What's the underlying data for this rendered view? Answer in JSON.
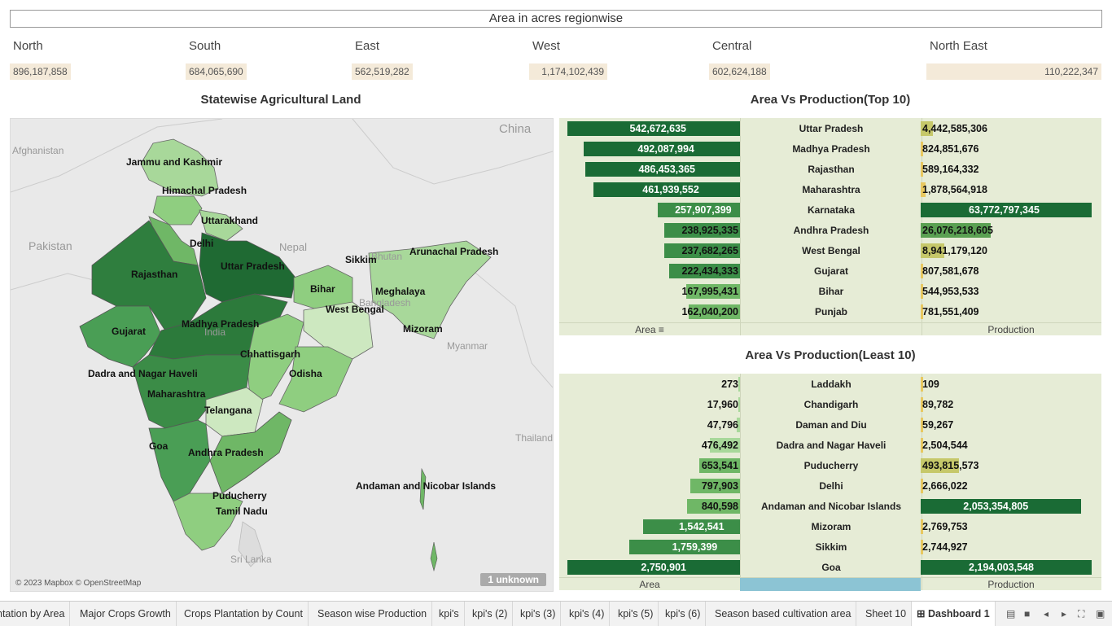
{
  "header": {
    "title": "Area in acres regionwise"
  },
  "regions": [
    {
      "name": "North",
      "value": "896,187,858"
    },
    {
      "name": "South",
      "value": "684,065,690"
    },
    {
      "name": "East",
      "value": "562,519,282"
    },
    {
      "name": "West",
      "value": "1,174,102,439"
    },
    {
      "name": "Central",
      "value": "602,624,188"
    },
    {
      "name": "North East",
      "value": "110,222,347"
    }
  ],
  "map": {
    "title": "Statewise Agricultural Land",
    "attribution": "© 2023 Mapbox © OpenStreetMap",
    "unknown_badge": "1 unknown",
    "countries": [
      "China",
      "Afghanistan",
      "Pakistan",
      "Nepal",
      "Bhutan",
      "Bangladesh",
      "Myanmar",
      "Thailand",
      "Sri Lanka",
      "India"
    ],
    "states": [
      "Jammu and Kashmir",
      "Himachal Pradesh",
      "Uttarakhand",
      "Delhi",
      "Rajasthan",
      "Uttar Pradesh",
      "Sikkim",
      "Arunachal Pradesh",
      "Bihar",
      "Meghalaya",
      "West Bengal",
      "Mizoram",
      "Gujarat",
      "Madhya Pradesh",
      "Chhattisgarh",
      "Odisha",
      "Dadra and Nagar Haveli",
      "Maharashtra",
      "Telangana",
      "Goa",
      "Andhra Pradesh",
      "Puducherry",
      "Tamil Nadu",
      "Andaman and Nicobar Islands"
    ]
  },
  "top10": {
    "title": "Area Vs Production(Top 10)",
    "area_label": "Area",
    "production_label": "Production",
    "rows": [
      {
        "state": "Uttar Pradesh",
        "area": "542,672,635",
        "area_v": 542672635,
        "prod": "4,442,585,306",
        "prod_v": 4442585306
      },
      {
        "state": "Madhya Pradesh",
        "area": "492,087,994",
        "area_v": 492087994,
        "prod": "824,851,676",
        "prod_v": 824851676
      },
      {
        "state": "Rajasthan",
        "area": "486,453,365",
        "area_v": 486453365,
        "prod": "589,164,332",
        "prod_v": 589164332
      },
      {
        "state": "Maharashtra",
        "area": "461,939,552",
        "area_v": 461939552,
        "prod": "1,878,564,918",
        "prod_v": 1878564918
      },
      {
        "state": "Karnataka",
        "area": "257,907,399",
        "area_v": 257907399,
        "prod": "63,772,797,345",
        "prod_v": 63772797345
      },
      {
        "state": "Andhra Pradesh",
        "area": "238,925,335",
        "area_v": 238925335,
        "prod": "26,076,218,605",
        "prod_v": 26076218605
      },
      {
        "state": "West Bengal",
        "area": "237,682,265",
        "area_v": 237682265,
        "prod": "8,941,179,120",
        "prod_v": 8941179120
      },
      {
        "state": "Gujarat",
        "area": "222,434,333",
        "area_v": 222434333,
        "prod": "807,581,678",
        "prod_v": 807581678
      },
      {
        "state": "Bihar",
        "area": "167,995,431",
        "area_v": 167995431,
        "prod": "544,953,533",
        "prod_v": 544953533
      },
      {
        "state": "Punjab",
        "area": "162,040,200",
        "area_v": 162040200,
        "prod": "781,551,409",
        "prod_v": 781551409
      }
    ]
  },
  "least10": {
    "title": "Area Vs Production(Least 10)",
    "area_label": "Area",
    "production_label": "Production",
    "rows": [
      {
        "state": "Laddakh",
        "area": "273",
        "area_v": 273,
        "prod": "109",
        "prod_v": 109
      },
      {
        "state": "Chandigarh",
        "area": "17,960",
        "area_v": 17960,
        "prod": "89,782",
        "prod_v": 89782
      },
      {
        "state": "Daman and Diu",
        "area": "47,796",
        "area_v": 47796,
        "prod": "59,267",
        "prod_v": 59267
      },
      {
        "state": "Dadra and Nagar Haveli",
        "area": "476,492",
        "area_v": 476492,
        "prod": "2,504,544",
        "prod_v": 2504544
      },
      {
        "state": "Puducherry",
        "area": "653,541",
        "area_v": 653541,
        "prod": "493,815,573",
        "prod_v": 493815573
      },
      {
        "state": "Delhi",
        "area": "797,903",
        "area_v": 797903,
        "prod": "2,666,022",
        "prod_v": 2666022
      },
      {
        "state": "Andaman and Nicobar Islands",
        "area": "840,598",
        "area_v": 840598,
        "prod": "2,053,354,805",
        "prod_v": 2053354805
      },
      {
        "state": "Mizoram",
        "area": "1,542,541",
        "area_v": 1542541,
        "prod": "2,769,753",
        "prod_v": 2769753
      },
      {
        "state": "Sikkim",
        "area": "1,759,399",
        "area_v": 1759399,
        "prod": "2,744,927",
        "prod_v": 2744927
      },
      {
        "state": "Goa",
        "area": "2,750,901",
        "area_v": 2750901,
        "prod": "2,194,003,548",
        "prod_v": 2194003548
      }
    ]
  },
  "tabs": [
    {
      "label": "ntation by Area"
    },
    {
      "label": "Major Crops Growth"
    },
    {
      "label": "Crops Plantation by Count"
    },
    {
      "label": "Season wise Production"
    },
    {
      "label": "kpi's"
    },
    {
      "label": "kpi's (2)"
    },
    {
      "label": "kpi's (3)"
    },
    {
      "label": "kpi's (4)"
    },
    {
      "label": "kpi's (5)"
    },
    {
      "label": "kpi's (6)"
    },
    {
      "label": "Season based cultivation area"
    },
    {
      "label": "Sheet 10"
    },
    {
      "label": "Dashboard 1",
      "active": true
    }
  ],
  "colors": {
    "dark_green": "#1a6b35",
    "mid_green": "#4a9e55",
    "light_green": "#a8d89a",
    "yellow": "#e8c860",
    "panel_bg": "#e6ecd6"
  }
}
